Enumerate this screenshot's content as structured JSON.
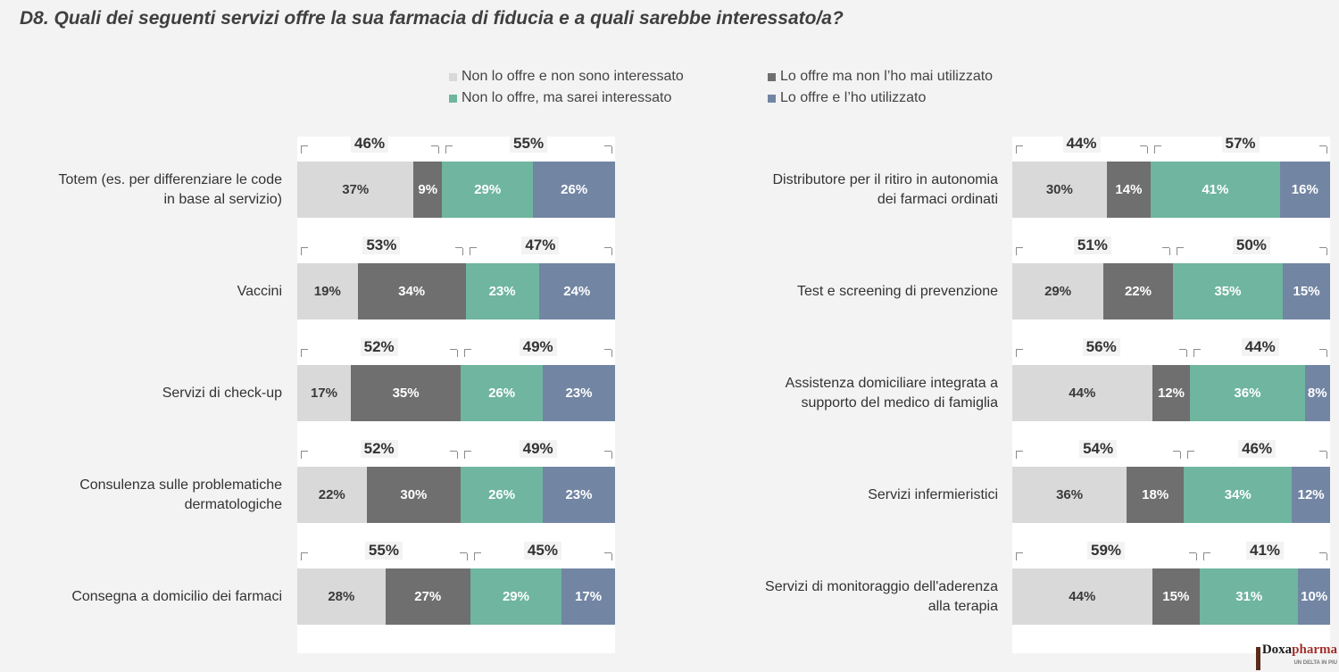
{
  "title": "D8. Quali dei seguenti servizi offre la sua farmacia di fiducia e a quali sarebbe interessato/a?",
  "legend": [
    {
      "label": "Non lo offre e non sono interessato",
      "color": "#d9d9d9"
    },
    {
      "label": "Lo offre ma non l’ho mai utilizzato",
      "color": "#6f6f6f"
    },
    {
      "label": "Non lo offre, ma sarei interessato",
      "color": "#6fb59f"
    },
    {
      "label": "Lo offre e l’ho utilizzato",
      "color": "#7285a3"
    }
  ],
  "chart_data": {
    "type": "bar",
    "orientation": "horizontal-stacked-100",
    "series_names": [
      "Non lo offre e non sono interessato",
      "Lo offre ma non l’ho mai utilizzato",
      "Non lo offre, ma sarei interessato",
      "Lo offre e l’ho utilizzato"
    ],
    "panels": [
      {
        "rows": [
          {
            "label_lines": [
              "Totem (es. per differenziare le code",
              "in base al servizio)"
            ],
            "values": [
              37,
              9,
              29,
              26
            ],
            "value_labels": [
              "37%",
              "9%",
              "29%",
              "26%"
            ],
            "group_totals": [
              "46%",
              "55%"
            ]
          },
          {
            "label_lines": [
              "Vaccini"
            ],
            "values": [
              19,
              34,
              23,
              24
            ],
            "value_labels": [
              "19%",
              "34%",
              "23%",
              "24%"
            ],
            "group_totals": [
              "53%",
              "47%"
            ]
          },
          {
            "label_lines": [
              "Servizi di check-up"
            ],
            "values": [
              17,
              35,
              26,
              23
            ],
            "value_labels": [
              "17%",
              "35%",
              "26%",
              "23%"
            ],
            "group_totals": [
              "52%",
              "49%"
            ]
          },
          {
            "label_lines": [
              "Consulenza sulle problematiche",
              "dermatologiche"
            ],
            "values": [
              22,
              30,
              26,
              23
            ],
            "value_labels": [
              "22%",
              "30%",
              "26%",
              "23%"
            ],
            "group_totals": [
              "52%",
              "49%"
            ]
          },
          {
            "label_lines": [
              "Consegna a domicilio dei farmaci"
            ],
            "values": [
              28,
              27,
              29,
              17
            ],
            "value_labels": [
              "28%",
              "27%",
              "29%",
              "17%"
            ],
            "group_totals": [
              "55%",
              "45%"
            ]
          }
        ]
      },
      {
        "rows": [
          {
            "label_lines": [
              "Distributore per il ritiro in autonomia",
              "dei farmaci ordinati"
            ],
            "values": [
              30,
              14,
              41,
              16
            ],
            "value_labels": [
              "30%",
              "14%",
              "41%",
              "16%"
            ],
            "group_totals": [
              "44%",
              "57%"
            ]
          },
          {
            "label_lines": [
              "Test e screening di prevenzione"
            ],
            "values": [
              29,
              22,
              35,
              15
            ],
            "value_labels": [
              "29%",
              "22%",
              "35%",
              "15%"
            ],
            "group_totals": [
              "51%",
              "50%"
            ]
          },
          {
            "label_lines": [
              "Assistenza domiciliare integrata a",
              "supporto del medico di famiglia"
            ],
            "values": [
              44,
              12,
              36,
              8
            ],
            "value_labels": [
              "44%",
              "12%",
              "36%",
              "8%"
            ],
            "group_totals": [
              "56%",
              "44%"
            ]
          },
          {
            "label_lines": [
              "Servizi infermieristici"
            ],
            "values": [
              36,
              18,
              34,
              12
            ],
            "value_labels": [
              "36%",
              "18%",
              "34%",
              "12%"
            ],
            "group_totals": [
              "54%",
              "46%"
            ]
          },
          {
            "label_lines": [
              "Servizi di monitoraggio dell'aderenza",
              "alla terapia"
            ],
            "values": [
              44,
              15,
              31,
              10
            ],
            "value_labels": [
              "44%",
              "15%",
              "31%",
              "10%"
            ],
            "group_totals": [
              "59%",
              "41%"
            ]
          }
        ]
      }
    ]
  },
  "logo": {
    "main": "Doxa",
    "accent": "pharma",
    "tagline": "UN DELTA IN PIU"
  }
}
